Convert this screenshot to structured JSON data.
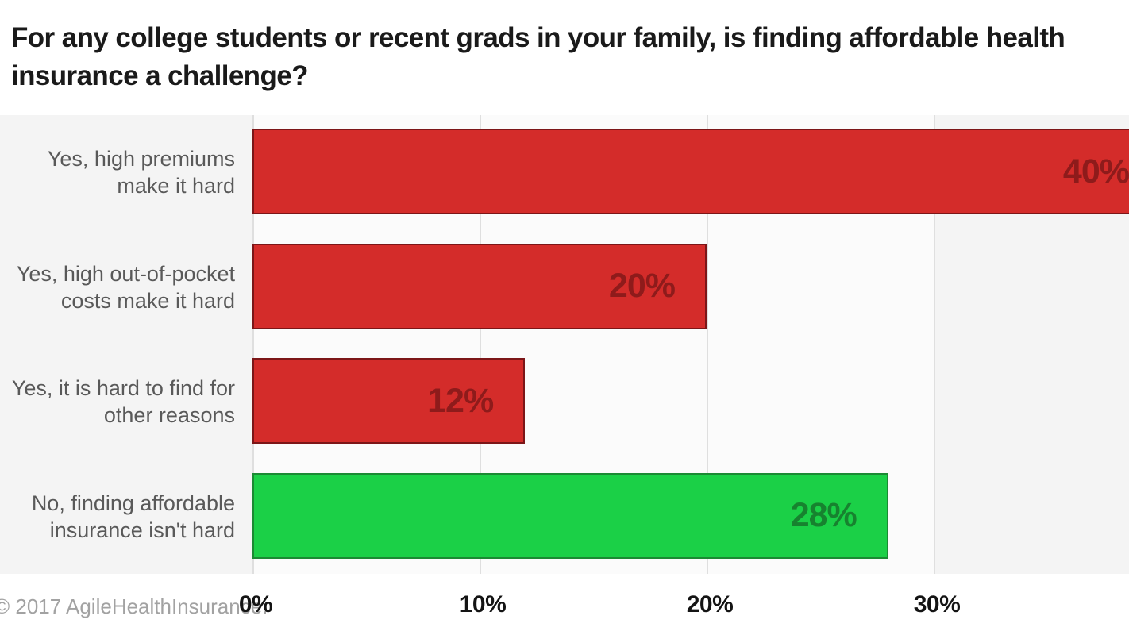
{
  "title": "For any college students or recent grads in your family, is finding affordable health\ninsurance a challenge?",
  "footer": {
    "copyright": "© 2017 AgileHealthInsurance."
  },
  "chart_data": {
    "type": "bar",
    "orientation": "horizontal",
    "title": "For any college students or recent grads in your family, is finding affordable health insurance a challenge?",
    "categories": [
      "Yes, high premiums\nmake it hard",
      "Yes, high out-of-pocket\ncosts make it hard",
      "Yes, it is hard to find for\nother reasons",
      "No, finding affordable\ninsurance isn't hard"
    ],
    "values": [
      40,
      20,
      12,
      28
    ],
    "value_labels": [
      "40%",
      "20%",
      "12%",
      "28%"
    ],
    "bar_styles": [
      {
        "fill": "#d42c2a",
        "border": "#7c1618",
        "label": "#8e1b1b"
      },
      {
        "fill": "#d42c2a",
        "border": "#7c1618",
        "label": "#8e1b1b"
      },
      {
        "fill": "#d42c2a",
        "border": "#7c1618",
        "label": "#8e1b1b"
      },
      {
        "fill": "#1bd047",
        "border": "#1b8a33",
        "label": "#17822f"
      }
    ],
    "x_ticks": [
      "0%",
      "10%",
      "20%",
      "30%"
    ],
    "x_tick_values": [
      0,
      10,
      20,
      30
    ],
    "xlim": [
      0,
      38.6
    ],
    "grid": true,
    "legend": false,
    "notes": "First bar (40%) is clipped at the right edge of the canvas"
  }
}
